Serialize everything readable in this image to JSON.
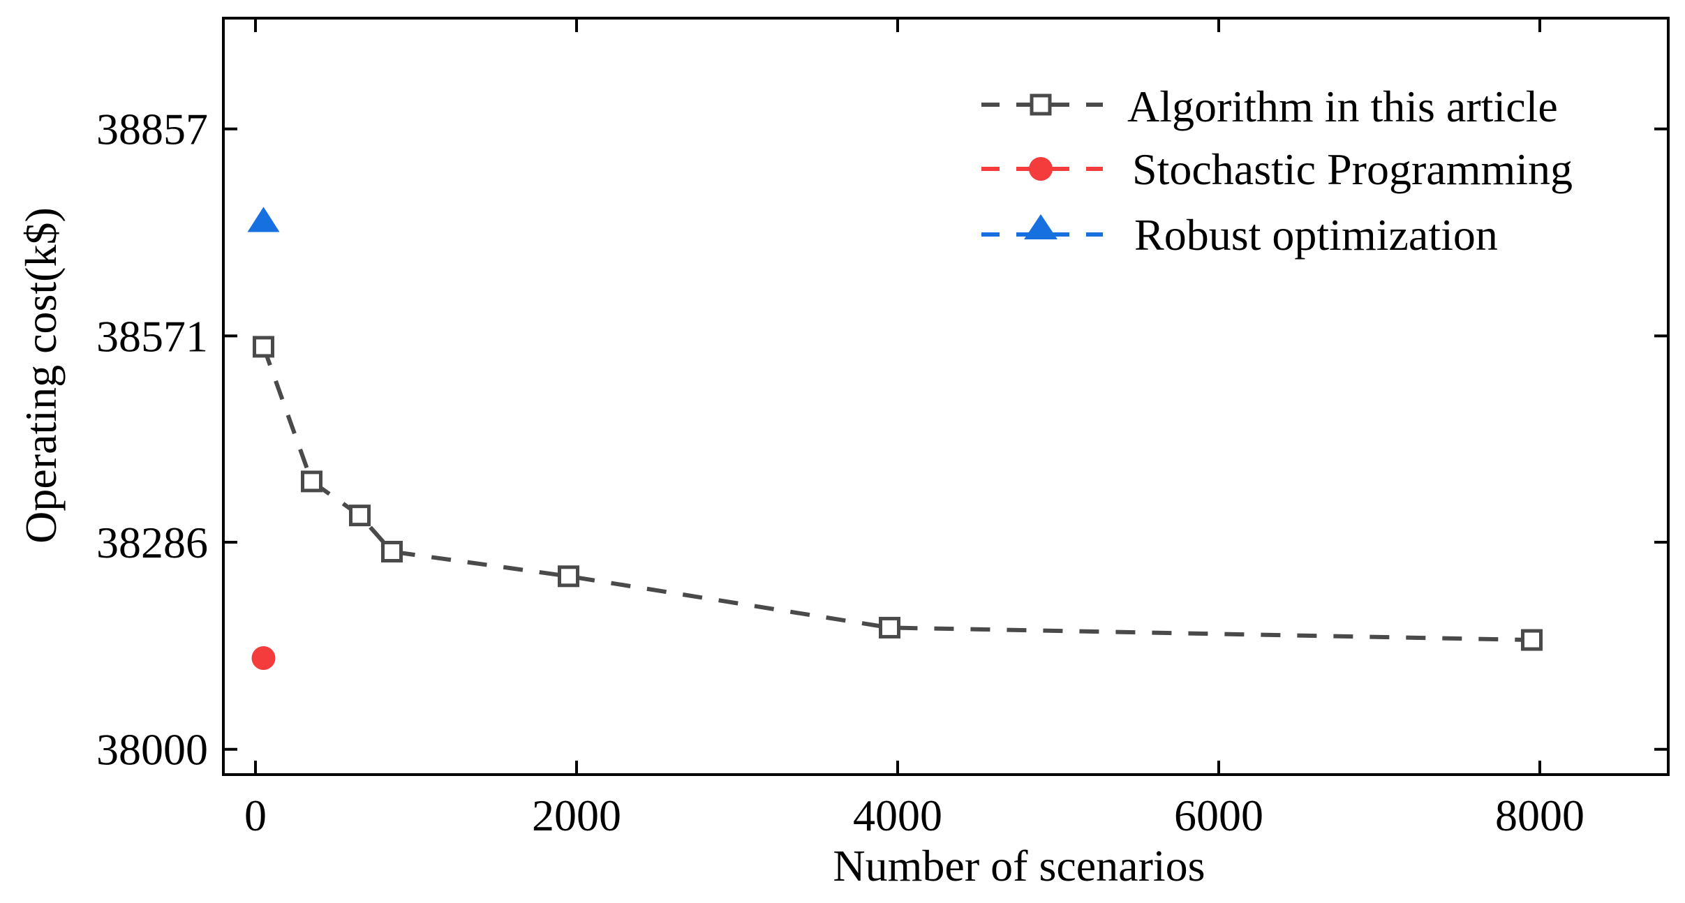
{
  "chart_data": {
    "type": "line",
    "title": "",
    "xlabel": "Number of scenarios",
    "ylabel": "Operating cost(k$)",
    "xlim": [
      -200,
      8800
    ],
    "ylim": [
      37965,
      39010
    ],
    "xticks": [
      0,
      2000,
      4000,
      6000,
      8000
    ],
    "xtick_labels": [
      "0",
      "2000",
      "4000",
      "6000",
      "8000"
    ],
    "yticks": [
      38000,
      38286,
      38571,
      38857
    ],
    "ytick_labels": [
      "38000",
      "38286",
      "38571",
      "38857"
    ],
    "grid": false,
    "legend_position": "top-right",
    "series": [
      {
        "name": "Algorithm in this article",
        "color": "#4a4a4a",
        "marker": "square",
        "line": "dashed",
        "x": [
          50,
          350,
          650,
          850,
          1950,
          3950,
          7950
        ],
        "y": [
          38556,
          38370,
          38323,
          38273,
          38239,
          38168,
          38151
        ]
      },
      {
        "name": "Stochastic Programming",
        "color": "#f43c3c",
        "marker": "circle",
        "line": "none",
        "x": [
          50
        ],
        "y": [
          38126
        ]
      },
      {
        "name": "Robust optimization",
        "color": "#1670e0",
        "marker": "triangle",
        "line": "none",
        "x": [
          50
        ],
        "y": [
          38730
        ]
      }
    ]
  }
}
